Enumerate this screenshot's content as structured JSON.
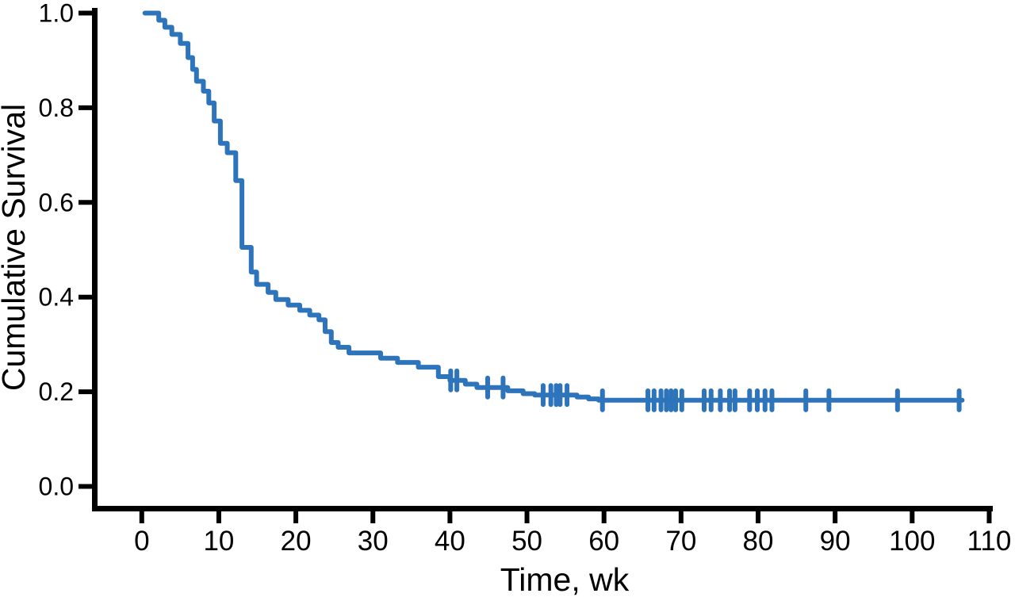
{
  "figure": {
    "background": "#ffffff"
  },
  "chart_data": {
    "type": "line",
    "subtype": "kaplan-meier-step-curve",
    "title": "",
    "xlabel": "Time, wk",
    "ylabel": "Cumulative Survival",
    "xlim": [
      -6.5,
      110.5
    ],
    "ylim": [
      0.0,
      1.0
    ],
    "grid": false,
    "legend": "none",
    "axis_color": "#000000",
    "x_ticks": [
      {
        "value": 0,
        "label": "0"
      },
      {
        "value": 10,
        "label": "10"
      },
      {
        "value": 20,
        "label": "20"
      },
      {
        "value": 30,
        "label": "30"
      },
      {
        "value": 40,
        "label": "40"
      },
      {
        "value": 50,
        "label": "50"
      },
      {
        "value": 60,
        "label": "60"
      },
      {
        "value": 70,
        "label": "70"
      },
      {
        "value": 80,
        "label": "80"
      },
      {
        "value": 90,
        "label": "90"
      },
      {
        "value": 100,
        "label": "100"
      },
      {
        "value": 110,
        "label": "110"
      }
    ],
    "y_ticks": [
      {
        "value": 0.0,
        "label": "0.0"
      },
      {
        "value": 0.2,
        "label": "0.2"
      },
      {
        "value": 0.4,
        "label": "0.4"
      },
      {
        "value": 0.6,
        "label": "0.6"
      },
      {
        "value": 0.8,
        "label": "0.8"
      },
      {
        "value": 1.0,
        "label": "1.0"
      }
    ],
    "series": [
      {
        "name": "Cumulative Survival",
        "color": "#2D74BB",
        "line_width": 6,
        "start": [
          0.4,
          1.0
        ],
        "steps": [
          [
            2.2,
            0.985
          ],
          [
            3.0,
            0.97
          ],
          [
            3.9,
            0.955
          ],
          [
            5.0,
            0.936
          ],
          [
            6.0,
            0.906
          ],
          [
            6.6,
            0.881
          ],
          [
            7.1,
            0.856
          ],
          [
            8.0,
            0.835
          ],
          [
            8.7,
            0.81
          ],
          [
            9.4,
            0.772
          ],
          [
            10.2,
            0.725
          ],
          [
            11.1,
            0.705
          ],
          [
            12.2,
            0.646
          ],
          [
            13.0,
            0.505
          ],
          [
            14.2,
            0.453
          ],
          [
            14.9,
            0.427
          ],
          [
            16.4,
            0.41
          ],
          [
            17.4,
            0.395
          ],
          [
            19.0,
            0.383
          ],
          [
            20.5,
            0.372
          ],
          [
            21.8,
            0.362
          ],
          [
            23.0,
            0.352
          ],
          [
            23.8,
            0.327
          ],
          [
            24.6,
            0.304
          ],
          [
            25.5,
            0.294
          ],
          [
            26.9,
            0.282
          ],
          [
            31.0,
            0.271
          ],
          [
            33.2,
            0.262
          ],
          [
            35.9,
            0.252
          ],
          [
            38.5,
            0.232
          ],
          [
            40.0,
            0.224
          ],
          [
            42.0,
            0.216
          ],
          [
            43.5,
            0.209
          ],
          [
            47.5,
            0.202
          ],
          [
            49.5,
            0.196
          ],
          [
            51.0,
            0.193
          ],
          [
            56.5,
            0.189
          ],
          [
            58.0,
            0.185
          ],
          [
            59.3,
            0.182
          ]
        ],
        "end_t": 106.5,
        "censor_marks": [
          [
            40.1,
            0.224
          ],
          [
            40.9,
            0.224
          ],
          [
            44.9,
            0.209
          ],
          [
            46.9,
            0.209
          ],
          [
            52.1,
            0.193
          ],
          [
            53.1,
            0.193
          ],
          [
            53.8,
            0.193
          ],
          [
            54.3,
            0.193
          ],
          [
            55.2,
            0.193
          ],
          [
            59.8,
            0.182
          ],
          [
            65.7,
            0.182
          ],
          [
            66.5,
            0.182
          ],
          [
            67.4,
            0.182
          ],
          [
            68.1,
            0.182
          ],
          [
            68.7,
            0.182
          ],
          [
            69.3,
            0.182
          ],
          [
            70.1,
            0.182
          ],
          [
            73.0,
            0.182
          ],
          [
            73.9,
            0.182
          ],
          [
            75.1,
            0.182
          ],
          [
            76.3,
            0.182
          ],
          [
            77.0,
            0.182
          ],
          [
            78.9,
            0.182
          ],
          [
            79.9,
            0.182
          ],
          [
            80.9,
            0.182
          ],
          [
            81.8,
            0.182
          ],
          [
            86.2,
            0.182
          ],
          [
            89.2,
            0.182
          ],
          [
            98.1,
            0.182
          ],
          [
            106.1,
            0.182
          ]
        ]
      }
    ]
  }
}
